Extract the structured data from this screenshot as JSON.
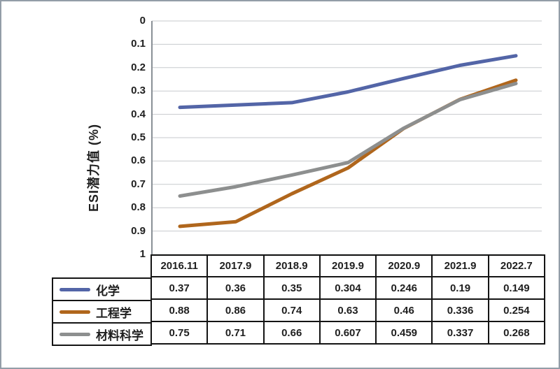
{
  "frame": {
    "background": "#ffffff",
    "border_color": "#939da8"
  },
  "chart_data": {
    "type": "line",
    "title": "",
    "xlabel": "",
    "ylabel": "ESI潜力值 (%)",
    "categories": [
      "2016.11",
      "2017.9",
      "2018.9",
      "2019.9",
      "2020.9",
      "2021.9",
      "2022.7"
    ],
    "series": [
      {
        "name": "化学",
        "color": "#5365a7",
        "values": [
          0.37,
          0.36,
          0.35,
          0.304,
          0.246,
          0.19,
          0.149
        ]
      },
      {
        "name": "工程学",
        "color": "#b0661c",
        "values": [
          0.88,
          0.86,
          0.74,
          0.63,
          0.46,
          0.336,
          0.254
        ]
      },
      {
        "name": "材料科学",
        "color": "#8d8f8f",
        "values": [
          0.75,
          0.71,
          0.66,
          0.607,
          0.459,
          0.337,
          0.268
        ]
      }
    ],
    "y_axis": {
      "min": 0,
      "max": 1,
      "step": 0.1,
      "inverted": true,
      "ticks": [
        "0",
        "0.1",
        "0.2",
        "0.3",
        "0.4",
        "0.5",
        "0.6",
        "0.7",
        "0.8",
        "0.9",
        "1"
      ]
    },
    "grid": true,
    "legend_position": "table-left",
    "colors": {
      "gridline": "#c7cacd",
      "axis_line": "#8a9096",
      "table_border": "#141414",
      "text": "#1f1f1f"
    }
  }
}
